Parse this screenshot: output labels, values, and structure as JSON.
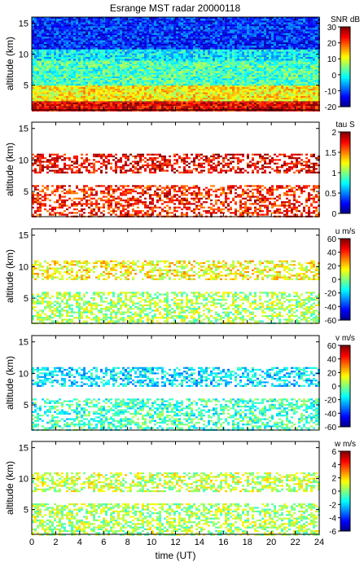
{
  "title": "Esrange MST radar 20000118",
  "chart_data": [
    {
      "type": "heatmap",
      "panel": 1,
      "ylabel": "altitude (km)",
      "xlabel": "",
      "xlim": [
        0,
        24
      ],
      "ylim": [
        1,
        16
      ],
      "yticks": [
        5,
        10,
        15
      ],
      "xticks": [
        0,
        2,
        4,
        6,
        8,
        10,
        12,
        14,
        16,
        18,
        20,
        22,
        24
      ],
      "colorbar": {
        "label": "SNR dB",
        "range": [
          -20,
          30
        ],
        "ticks": [
          -20,
          -10,
          0,
          10,
          20,
          30
        ]
      },
      "fill": "full",
      "layers": [
        {
          "alt_range": [
            1,
            2.5
          ],
          "value": 25
        },
        {
          "alt_range": [
            2.5,
            5
          ],
          "value": 12
        },
        {
          "alt_range": [
            5,
            9
          ],
          "value": 2
        },
        {
          "alt_range": [
            9,
            11
          ],
          "value": -2
        },
        {
          "alt_range": [
            11,
            16
          ],
          "value": -12
        }
      ]
    },
    {
      "type": "heatmap",
      "panel": 2,
      "ylabel": "altitude (km)",
      "xlabel": "",
      "xlim": [
        0,
        24
      ],
      "ylim": [
        1,
        16
      ],
      "yticks": [
        5,
        10,
        15
      ],
      "colorbar": {
        "label": "tau S",
        "range": [
          0,
          2
        ],
        "ticks": [
          0,
          0.5,
          1,
          1.5,
          2
        ]
      },
      "fill": "gappy",
      "layers": [
        {
          "alt_range": [
            1,
            6
          ],
          "value": 1.7
        },
        {
          "alt_range": [
            8,
            11
          ],
          "value": 1.8
        }
      ]
    },
    {
      "type": "heatmap",
      "panel": 3,
      "ylabel": "altitude (km)",
      "xlabel": "",
      "xlim": [
        0,
        24
      ],
      "ylim": [
        1,
        16
      ],
      "yticks": [
        5,
        10,
        15
      ],
      "colorbar": {
        "label": "u m/s",
        "range": [
          -60,
          60
        ],
        "ticks": [
          -60,
          -40,
          -20,
          0,
          20,
          40,
          60
        ]
      },
      "fill": "gappy",
      "layers": [
        {
          "alt_range": [
            1,
            6
          ],
          "value": 5
        },
        {
          "alt_range": [
            8,
            11
          ],
          "value": 15
        }
      ]
    },
    {
      "type": "heatmap",
      "panel": 4,
      "ylabel": "altitude (km)",
      "xlabel": "",
      "xlim": [
        0,
        24
      ],
      "ylim": [
        1,
        16
      ],
      "yticks": [
        5,
        10,
        15
      ],
      "colorbar": {
        "label": "v m/s",
        "range": [
          -60,
          60
        ],
        "ticks": [
          -60,
          -40,
          -20,
          0,
          20,
          40,
          60
        ]
      },
      "fill": "gappy",
      "layers": [
        {
          "alt_range": [
            1,
            6
          ],
          "value": -8
        },
        {
          "alt_range": [
            8,
            11
          ],
          "value": -18
        }
      ]
    },
    {
      "type": "heatmap",
      "panel": 5,
      "ylabel": "altitude (km)",
      "xlabel": "time (UT)",
      "xlim": [
        0,
        24
      ],
      "ylim": [
        1,
        16
      ],
      "yticks": [
        5,
        10,
        15
      ],
      "xticks": [
        0,
        2,
        4,
        6,
        8,
        10,
        12,
        14,
        16,
        18,
        20,
        22,
        24
      ],
      "colorbar": {
        "label": "w m/s",
        "range": [
          -6,
          6
        ],
        "ticks": [
          -6,
          -4,
          -2,
          0,
          2,
          4,
          6
        ]
      },
      "fill": "gappy",
      "layers": [
        {
          "alt_range": [
            1,
            6
          ],
          "value": 0.5
        },
        {
          "alt_range": [
            8,
            11
          ],
          "value": 0.8
        }
      ]
    }
  ]
}
